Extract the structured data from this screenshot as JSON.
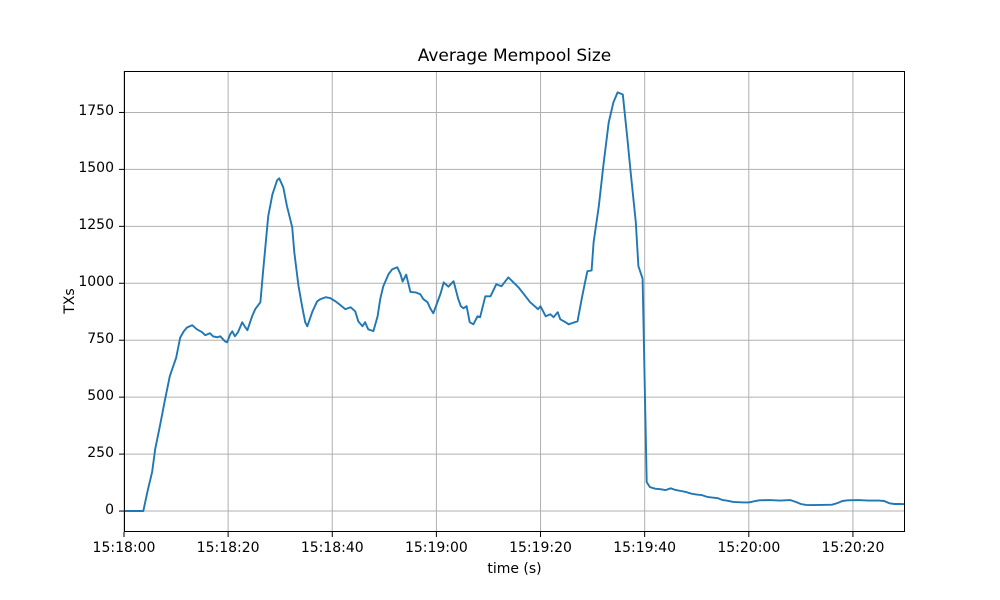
{
  "figure": {
    "title": "Average Mempool Size"
  },
  "chart_data": {
    "type": "line",
    "title": "Average Mempool Size",
    "xlabel": "time (s)",
    "ylabel": "TXs",
    "x_tick_labels": [
      "15:18:00",
      "15:18:20",
      "15:18:40",
      "15:19:00",
      "15:19:20",
      "15:19:40",
      "15:20:00",
      "15:20:20"
    ],
    "x_tick_seconds": [
      0,
      20,
      40,
      60,
      80,
      100,
      120,
      140
    ],
    "y_ticks": [
      0,
      250,
      500,
      750,
      1000,
      1250,
      1500,
      1750
    ],
    "xlim": [
      0,
      150
    ],
    "ylim": [
      -92,
      1932
    ],
    "grid": true,
    "legend": "none",
    "line_color": "#1f77b4",
    "grid_color": "#b0b0b0",
    "spine_color": "#000000",
    "background": "#ffffff",
    "series": [
      {
        "color": "#1f77b4",
        "points": [
          [
            0,
            0
          ],
          [
            1,
            0
          ],
          [
            2,
            0
          ],
          [
            3,
            0
          ],
          [
            3.7,
            0
          ],
          [
            4.6,
            96
          ],
          [
            5.4,
            171
          ],
          [
            6,
            272
          ],
          [
            6.9,
            373
          ],
          [
            7.9,
            491
          ],
          [
            8.8,
            592
          ],
          [
            9.4,
            632
          ],
          [
            10,
            672
          ],
          [
            10.8,
            762
          ],
          [
            11.5,
            790
          ],
          [
            12.1,
            806
          ],
          [
            13.1,
            816
          ],
          [
            14,
            798
          ],
          [
            15,
            785
          ],
          [
            15.6,
            772
          ],
          [
            16.5,
            781
          ],
          [
            17.1,
            767
          ],
          [
            17.9,
            763
          ],
          [
            18.5,
            767
          ],
          [
            19.4,
            745
          ],
          [
            19.8,
            741
          ],
          [
            20.4,
            776
          ],
          [
            20.8,
            789
          ],
          [
            21.3,
            767
          ],
          [
            21.9,
            785
          ],
          [
            22.7,
            829
          ],
          [
            23.3,
            807
          ],
          [
            23.7,
            794
          ],
          [
            24.6,
            855
          ],
          [
            25.2,
            886
          ],
          [
            26.2,
            917
          ],
          [
            26.7,
            1048
          ],
          [
            27.7,
            1294
          ],
          [
            28.5,
            1390
          ],
          [
            29.4,
            1452
          ],
          [
            29.8,
            1461
          ],
          [
            30.6,
            1421
          ],
          [
            31.3,
            1338
          ],
          [
            32.3,
            1246
          ],
          [
            32.7,
            1136
          ],
          [
            33.5,
            991
          ],
          [
            34.2,
            899
          ],
          [
            34.8,
            829
          ],
          [
            35.2,
            811
          ],
          [
            36.2,
            877
          ],
          [
            37.1,
            921
          ],
          [
            37.7,
            930
          ],
          [
            38.7,
            939
          ],
          [
            39.6,
            935
          ],
          [
            40.6,
            921
          ],
          [
            41.5,
            905
          ],
          [
            42.5,
            886
          ],
          [
            43.5,
            895
          ],
          [
            44.4,
            877
          ],
          [
            45,
            833
          ],
          [
            45.8,
            811
          ],
          [
            46.3,
            829
          ],
          [
            46.9,
            798
          ],
          [
            47.9,
            790
          ],
          [
            48.7,
            855
          ],
          [
            49.2,
            930
          ],
          [
            49.8,
            987
          ],
          [
            50.8,
            1040
          ],
          [
            51.5,
            1061
          ],
          [
            52.5,
            1070
          ],
          [
            53.1,
            1040
          ],
          [
            53.5,
            1008
          ],
          [
            54.2,
            1038
          ],
          [
            55,
            962
          ],
          [
            56,
            960
          ],
          [
            56.9,
            952
          ],
          [
            57.5,
            930
          ],
          [
            58.3,
            917
          ],
          [
            58.8,
            890
          ],
          [
            59.4,
            868
          ],
          [
            60.2,
            917
          ],
          [
            60.8,
            955
          ],
          [
            61.4,
            1004
          ],
          [
            62.3,
            985
          ],
          [
            63.3,
            1009
          ],
          [
            64.2,
            930
          ],
          [
            64.7,
            899
          ],
          [
            65.2,
            890
          ],
          [
            65.8,
            900
          ],
          [
            66.4,
            829
          ],
          [
            67.1,
            820
          ],
          [
            67.9,
            855
          ],
          [
            68.4,
            851
          ],
          [
            69.4,
            943
          ],
          [
            70.4,
            943
          ],
          [
            71.5,
            996
          ],
          [
            72.5,
            987
          ],
          [
            73.8,
            1026
          ],
          [
            74.8,
            1004
          ],
          [
            75.8,
            981
          ],
          [
            76.8,
            952
          ],
          [
            78,
            917
          ],
          [
            79,
            897
          ],
          [
            79.5,
            886
          ],
          [
            80,
            899
          ],
          [
            81,
            855
          ],
          [
            81.9,
            864
          ],
          [
            82.5,
            851
          ],
          [
            83.3,
            873
          ],
          [
            83.8,
            842
          ],
          [
            84.8,
            829
          ],
          [
            85.4,
            820
          ],
          [
            86.2,
            826
          ],
          [
            87.1,
            833
          ],
          [
            88,
            943
          ],
          [
            88.7,
            1020
          ],
          [
            89,
            1053
          ],
          [
            89.8,
            1056
          ],
          [
            90.2,
            1180
          ],
          [
            91.2,
            1338
          ],
          [
            92.1,
            1522
          ],
          [
            93.1,
            1706
          ],
          [
            94,
            1794
          ],
          [
            94.8,
            1838
          ],
          [
            95.8,
            1829
          ],
          [
            96.7,
            1630
          ],
          [
            97.3,
            1490
          ],
          [
            98.3,
            1268
          ],
          [
            98.8,
            1075
          ],
          [
            99.6,
            1020
          ],
          [
            100,
            560
          ],
          [
            100.4,
            127
          ],
          [
            101,
            105
          ],
          [
            102,
            98
          ],
          [
            103,
            96
          ],
          [
            104,
            92
          ],
          [
            105,
            100
          ],
          [
            106,
            92
          ],
          [
            107,
            88
          ],
          [
            108,
            83
          ],
          [
            109,
            76
          ],
          [
            110,
            72
          ],
          [
            111,
            70
          ],
          [
            112,
            62
          ],
          [
            113,
            59
          ],
          [
            114,
            57
          ],
          [
            115,
            48
          ],
          [
            116,
            45
          ],
          [
            117,
            40
          ],
          [
            118,
            39
          ],
          [
            119,
            38
          ],
          [
            120,
            38
          ],
          [
            121,
            43
          ],
          [
            122,
            47
          ],
          [
            124,
            48
          ],
          [
            126,
            46
          ],
          [
            128,
            48
          ],
          [
            129,
            40
          ],
          [
            130,
            31
          ],
          [
            131,
            27
          ],
          [
            132,
            26
          ],
          [
            134,
            27
          ],
          [
            136,
            28
          ],
          [
            137,
            35
          ],
          [
            138,
            44
          ],
          [
            139,
            47
          ],
          [
            141,
            48
          ],
          [
            143,
            46
          ],
          [
            145,
            46
          ],
          [
            146,
            44
          ],
          [
            147,
            34
          ],
          [
            148,
            31
          ],
          [
            149,
            31
          ],
          [
            150,
            30
          ]
        ]
      }
    ]
  }
}
